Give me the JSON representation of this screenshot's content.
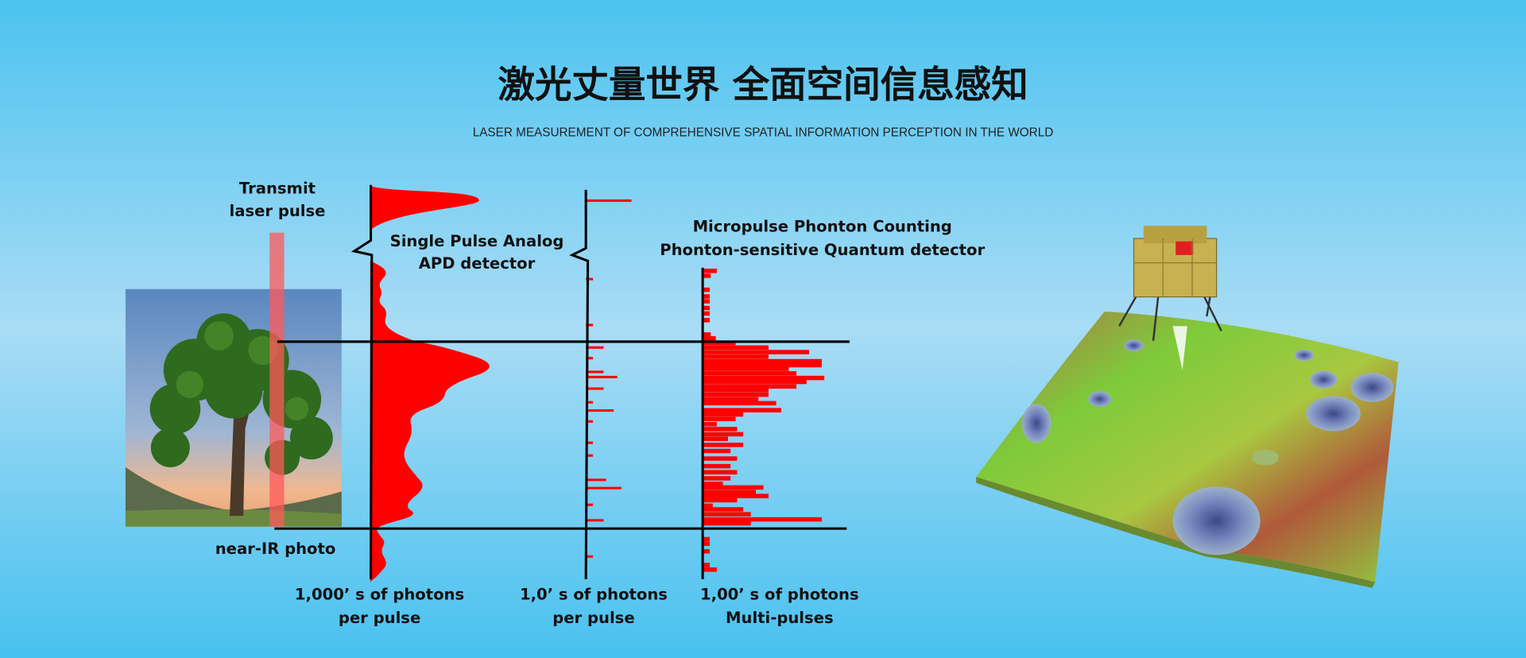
{
  "header": {
    "title": "激光丈量世界 全面空间信息感知",
    "subtitle": "LASER MEASUREMENT OF COMPREHENSIVE SPATIAL INFORMATION PERCEPTION IN THE WORLD"
  },
  "diagram": {
    "transmit_line1": "Transmit",
    "transmit_line2": "laser pulse",
    "photo_label": "near-IR photo",
    "analog_line1": "Single Pulse Analog",
    "analog_line2": "APD detector",
    "counting_line1": "Micropulse Phonton Counting",
    "counting_line2": "Phonton-sensitive Quantum detector",
    "axis1_line1": "1,000’ s of photons",
    "axis1_line2": "per pulse",
    "axis2_line1": "1,0’ s of photons",
    "axis2_line2": "per pulse",
    "axis3_line1": "1,00’ s of photons",
    "axis3_line2": "Multi-pulses"
  },
  "colors": {
    "signal": "#ff0000",
    "laser_beam": "#ff5a5a",
    "background_top": "#4cc3f0",
    "background_mid": "#a9dcf5"
  }
}
